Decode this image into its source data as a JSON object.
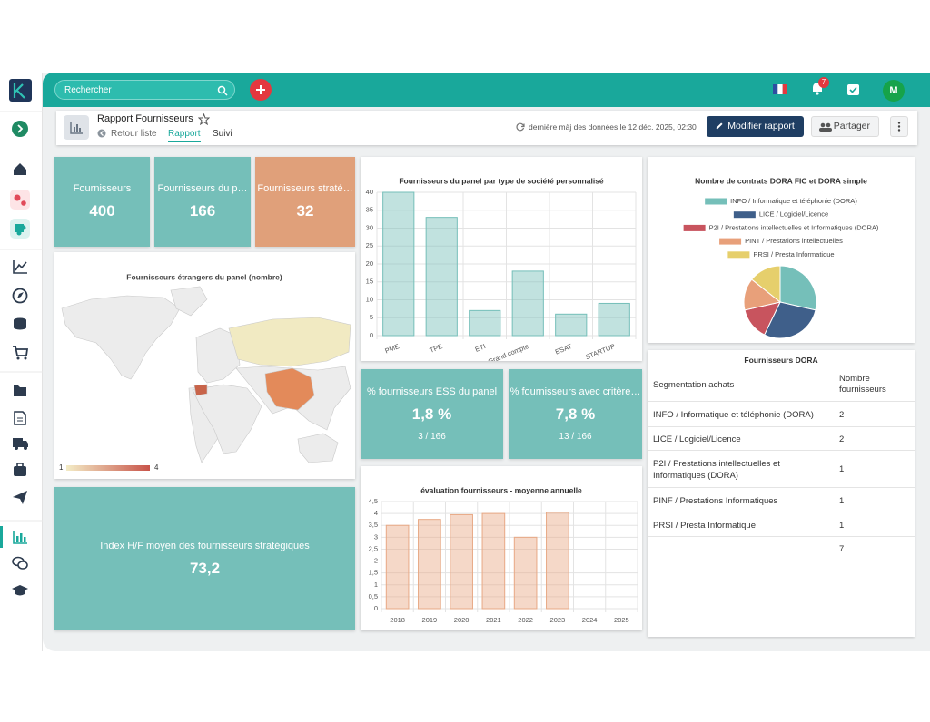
{
  "app": {
    "search_placeholder": "Rechercher",
    "notifications": 7,
    "avatar": "M"
  },
  "header": {
    "title": "Rapport Fournisseurs",
    "back": "Retour liste",
    "tabs": [
      "Rapport",
      "Suivi"
    ],
    "last_update": "dernière màj des données le 12 déc. 2025, 02:30",
    "edit_button": "Modifier rapport",
    "share_button": "Partager"
  },
  "kpis": [
    {
      "label": "Fournisseurs",
      "value": 400
    },
    {
      "label": "Fournisseurs du p…",
      "value": 166
    },
    {
      "label": "Fournisseurs straté…",
      "value": 32
    },
    {
      "label": "% fournisseurs ESS du panel",
      "value": "1,8 %",
      "detail": "3 / 166"
    },
    {
      "label": "% fournisseurs avec critère…",
      "value": "7,8 %",
      "detail": "13 / 166"
    },
    {
      "label": "Index H/F moyen des fournisseurs stratégiques",
      "value": "73,2"
    }
  ],
  "map": {
    "title": "Fournisseurs étrangers du panel (nombre)",
    "legend_min": 1,
    "legend_max": 4
  },
  "chart_data": [
    {
      "type": "bar",
      "title": "Fournisseurs du panel par type de société personnalisé",
      "categories": [
        "PME",
        "TPE",
        "ETI",
        "Grand compte",
        "ESAT",
        "STARTUP"
      ],
      "values": [
        40,
        33,
        7,
        18,
        6,
        9
      ],
      "color": "#75bfb9",
      "ylim": [
        0,
        40
      ],
      "yticks": [
        0,
        5,
        10,
        15,
        20,
        25,
        30,
        35,
        40
      ],
      "grid": true
    },
    {
      "type": "bar",
      "title": "évaluation fournisseurs - moyenne annuelle",
      "categories": [
        "2018",
        "2019",
        "2020",
        "2021",
        "2022",
        "2023",
        "2024",
        "2025"
      ],
      "values": [
        3.5,
        3.75,
        3.95,
        4.0,
        3.0,
        4.05,
        null,
        null
      ],
      "color": "#e8a985",
      "ylim": [
        0,
        4.5
      ],
      "yticks": [
        0,
        {
          "value": 0.5,
          "label": "0,5"
        },
        1,
        {
          "value": 1.5,
          "label": "1,5"
        },
        2,
        {
          "value": 2.5,
          "label": "2,5"
        },
        3,
        {
          "value": 3.5,
          "label": "3,5"
        },
        4,
        {
          "value": 4.5,
          "label": "4,5"
        }
      ],
      "grid": true
    },
    {
      "type": "pie",
      "title": "Nombre de contrats  DORA FIC et DORA simple",
      "categories": [
        "INFO / Informatique et téléphonie (DORA)",
        "LICE / Logiciel/Licence",
        "P2I / Prestations intellectuelles et Informatiques (DORA)",
        "PINT / Prestations intellectuelles",
        "PRSI / Presta Informatique"
      ],
      "values": [
        2,
        2,
        1,
        1,
        1
      ],
      "colors": [
        "#75bfb9",
        "#3f5f8a",
        "#c8545e",
        "#e8a07a",
        "#e6cf6c"
      ]
    }
  ],
  "table": {
    "title": "Fournisseurs DORA",
    "header": [
      "Segmentation achats",
      "Nombre fournisseurs"
    ],
    "rows": [
      [
        "INFO / Informatique et téléphonie (DORA)",
        2
      ],
      [
        "LICE / Logiciel/Licence",
        2
      ],
      [
        "P2I / Prestations intellectuelles et Informatiques (DORA)",
        1
      ],
      [
        "PINF / Prestations Informatiques",
        1
      ],
      [
        "PRSI / Presta Informatique",
        1
      ]
    ],
    "total": 7
  }
}
